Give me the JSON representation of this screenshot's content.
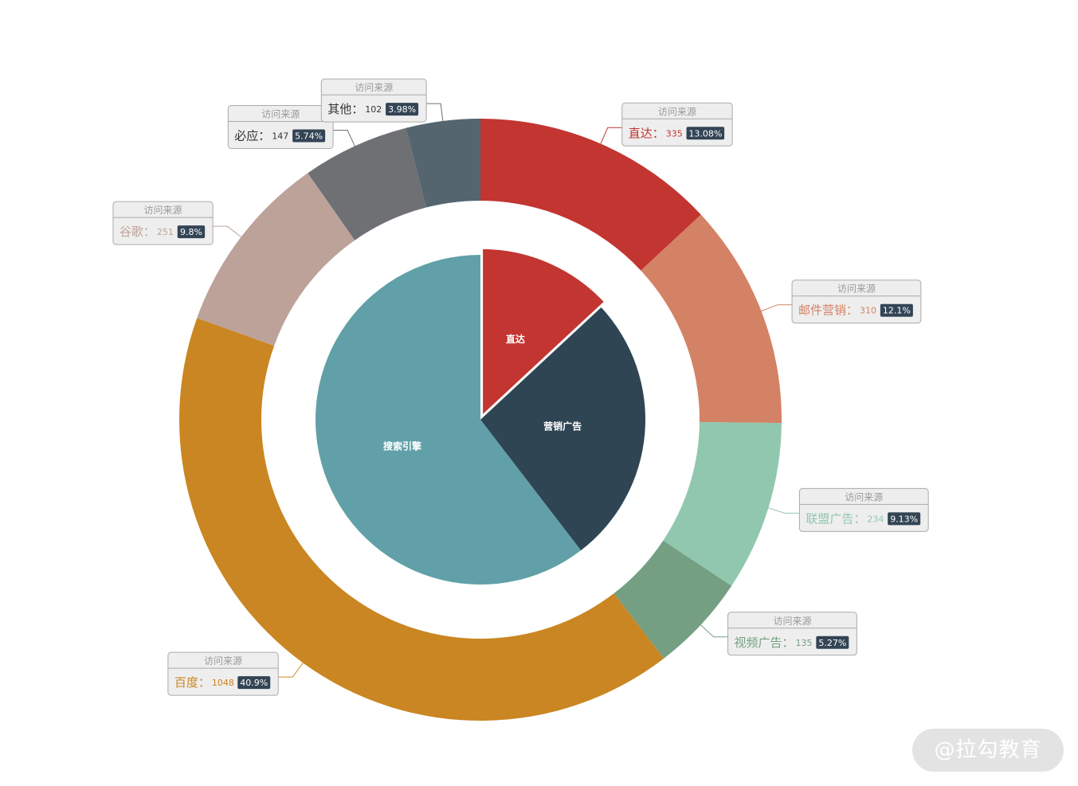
{
  "chart_data": {
    "type": "pie",
    "title": "",
    "inner": {
      "name": "访问来源",
      "slices": [
        {
          "name": "直达",
          "value": 335,
          "color": "#c23531"
        },
        {
          "name": "营销广告",
          "value": 679,
          "color": "#2f4554"
        },
        {
          "name": "搜索引擎",
          "value": 1548,
          "color": "#61a0a8"
        }
      ]
    },
    "outer": {
      "name": "访问来源",
      "slices": [
        {
          "name": "直达",
          "value": 335,
          "percent": "13.08%",
          "color": "#c23531"
        },
        {
          "name": "邮件营销",
          "value": 310,
          "percent": "12.1%",
          "color": "#d48265"
        },
        {
          "name": "联盟广告",
          "value": 234,
          "percent": "9.13%",
          "color": "#91c7ae"
        },
        {
          "name": "视频广告",
          "value": 135,
          "percent": "5.27%",
          "color": "#749f83"
        },
        {
          "name": "百度",
          "value": 1048,
          "percent": "40.9%",
          "color": "#ca8622"
        },
        {
          "name": "谷歌",
          "value": 251,
          "percent": "9.8%",
          "color": "#bda29a"
        },
        {
          "name": "必应",
          "value": 147,
          "percent": "5.74%",
          "color": "#6e7074"
        },
        {
          "name": "其他",
          "value": 102,
          "percent": "3.98%",
          "color": "#546570"
        }
      ]
    },
    "legend": "none"
  },
  "watermark": "@拉勾教育"
}
